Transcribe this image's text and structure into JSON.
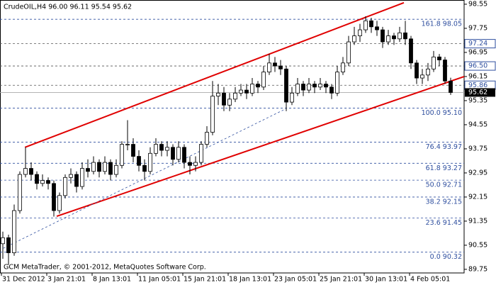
{
  "chart_data": {
    "type": "candlestick",
    "title": "CrudeOIL,H4  96.00 96.11 95.54 95.62",
    "footer": "GCM MetaTrader, © 2001-2012, MetaQuotes Software Corp.",
    "categories": [
      "31 Dec 2012",
      null,
      null,
      null,
      null,
      null,
      null,
      null,
      "3 Jan 21:01",
      null,
      null,
      null,
      null,
      null,
      null,
      null,
      "8 Jan 13:01",
      null,
      null,
      null,
      null,
      null,
      null,
      null,
      "11 Jan 05:01",
      null,
      null,
      null,
      null,
      null,
      null,
      null,
      "15 Jan 21:01",
      null,
      null,
      null,
      null,
      null,
      null,
      null,
      "18 Jan 13:01",
      null,
      null,
      null,
      null,
      null,
      null,
      null,
      "23 Jan 05:01",
      null,
      null,
      null,
      null,
      null,
      null,
      null,
      "25 Jan 21:01",
      null,
      null,
      null,
      null,
      null,
      null,
      null,
      "30 Jan 13:01",
      null,
      null,
      null,
      null,
      null,
      null,
      null,
      "4 Feb 05:01",
      null,
      null,
      null,
      null,
      null,
      null,
      null
    ],
    "open": [
      90.6,
      90.8,
      90.3,
      91.7,
      92.9,
      93.1,
      92.9,
      92.6,
      92.7,
      92.6,
      91.7,
      92.2,
      92.8,
      92.9,
      92.5,
      93.1,
      93.0,
      93.3,
      93.0,
      93.3,
      92.9,
      93.2,
      93.9,
      93.9,
      93.5,
      93.2,
      93.0,
      93.6,
      93.9,
      93.7,
      93.8,
      93.4,
      93.8,
      93.3,
      93.2,
      93.3,
      93.9,
      94.3,
      95.5,
      95.6,
      95.2,
      95.4,
      95.6,
      95.7,
      95.6,
      95.9,
      95.8,
      96.3,
      96.6,
      96.5,
      96.4,
      95.3,
      95.6,
      95.9,
      95.7,
      95.9,
      95.8,
      95.9,
      95.8,
      95.6,
      96.3,
      96.6,
      97.3,
      97.5,
      97.7,
      98.0,
      97.8,
      97.7,
      97.3,
      97.5,
      97.4,
      97.6,
      97.4,
      96.6,
      96.1,
      96.2,
      96.4,
      96.8,
      96.7,
      96.0
    ],
    "high": [
      91.0,
      90.9,
      91.9,
      93.0,
      93.8,
      93.3,
      93.0,
      92.9,
      92.8,
      92.7,
      92.3,
      92.9,
      93.1,
      93.0,
      93.3,
      93.4,
      93.5,
      93.4,
      93.5,
      93.4,
      93.4,
      94.0,
      94.7,
      94.1,
      93.7,
      93.4,
      93.8,
      94.1,
      94.0,
      94.0,
      93.9,
      94.0,
      93.9,
      93.5,
      93.5,
      94.0,
      94.5,
      96.0,
      95.9,
      95.8,
      95.6,
      95.8,
      95.9,
      95.9,
      96.1,
      96.0,
      96.5,
      96.9,
      96.8,
      96.7,
      96.5,
      95.8,
      96.1,
      96.0,
      96.1,
      96.0,
      96.1,
      96.0,
      95.9,
      96.5,
      96.8,
      97.5,
      97.8,
      97.9,
      98.15,
      98.1,
      98.0,
      97.8,
      97.7,
      97.6,
      97.8,
      98.0,
      97.5,
      96.7,
      96.4,
      96.6,
      97.0,
      96.9,
      96.8,
      96.11
    ],
    "low": [
      90.1,
      89.9,
      90.2,
      91.6,
      92.8,
      92.7,
      92.4,
      92.5,
      92.4,
      91.5,
      91.6,
      92.1,
      92.6,
      92.3,
      92.4,
      92.8,
      92.9,
      92.8,
      92.9,
      92.7,
      92.8,
      93.1,
      93.7,
      93.3,
      93.0,
      92.7,
      92.9,
      93.5,
      93.5,
      93.5,
      93.2,
      93.3,
      93.1,
      92.9,
      93.0,
      93.2,
      93.8,
      94.2,
      95.2,
      95.0,
      95.0,
      95.3,
      95.5,
      95.4,
      95.5,
      95.6,
      95.7,
      96.2,
      96.3,
      96.2,
      95.0,
      95.2,
      95.5,
      95.5,
      95.6,
      95.6,
      95.7,
      95.6,
      95.4,
      95.5,
      96.2,
      96.5,
      97.2,
      97.3,
      97.6,
      97.6,
      97.5,
      97.1,
      97.2,
      97.2,
      97.3,
      97.2,
      96.4,
      95.9,
      95.9,
      96.0,
      96.3,
      96.5,
      95.9,
      95.54
    ],
    "close": [
      90.8,
      90.3,
      91.7,
      92.9,
      93.1,
      92.9,
      92.6,
      92.7,
      92.6,
      91.7,
      92.2,
      92.8,
      92.9,
      92.5,
      93.1,
      93.0,
      93.3,
      93.0,
      93.3,
      92.9,
      93.2,
      93.9,
      93.9,
      93.5,
      93.2,
      93.0,
      93.6,
      93.9,
      93.7,
      93.8,
      93.4,
      93.8,
      93.3,
      93.2,
      93.3,
      93.9,
      94.3,
      95.5,
      95.6,
      95.2,
      95.4,
      95.6,
      95.7,
      95.6,
      95.9,
      95.8,
      96.3,
      96.6,
      96.5,
      96.4,
      95.3,
      95.6,
      95.9,
      95.7,
      95.9,
      95.8,
      95.9,
      95.8,
      95.6,
      96.3,
      96.6,
      97.3,
      97.5,
      97.7,
      98.0,
      97.8,
      97.7,
      97.3,
      97.5,
      97.4,
      97.6,
      97.4,
      96.6,
      96.1,
      96.2,
      96.4,
      96.8,
      96.7,
      96.0,
      95.62
    ],
    "ylim": [
      89.63,
      98.69
    ],
    "yticks": [
      89.75,
      90.55,
      91.35,
      92.15,
      92.95,
      93.75,
      94.55,
      95.35,
      96.15,
      96.95,
      97.75,
      98.55
    ],
    "fib_levels": [
      {
        "value": 98.05,
        "label": "161.8 98.05"
      },
      {
        "value": 95.1,
        "label": "100.0 95.10"
      },
      {
        "value": 93.97,
        "label": "76.4 93.97"
      },
      {
        "value": 93.27,
        "label": "61.8 93.27"
      },
      {
        "value": 92.71,
        "label": "50.0 92.71"
      },
      {
        "value": 92.15,
        "label": "38.2 92.15"
      },
      {
        "value": 91.45,
        "label": "23.6 91.45"
      },
      {
        "value": 90.32,
        "label": "0.0 90.32"
      }
    ],
    "fib_color": "#2f4f9f",
    "price_lines": [
      {
        "value": 97.24,
        "label": "97.24"
      },
      {
        "value": 96.5,
        "label": "96.50"
      },
      {
        "value": 95.86,
        "label": "95.86"
      }
    ],
    "last_price": 95.62,
    "trendlines": [
      {
        "x": [
          3.9,
          70.75
        ],
        "y": [
          93.8,
          98.6
        ],
        "color": "#e00000",
        "dashed": false
      },
      {
        "x": [
          9.5,
          81.4
        ],
        "y": [
          91.51,
          96.15
        ],
        "color": "#e00000",
        "dashed": false
      },
      {
        "x": [
          0.1,
          49.5
        ],
        "y": [
          90.45,
          95.04
        ],
        "color": "#2f4f9f",
        "dashed": true
      }
    ],
    "bull_color": "#ffffff",
    "bear_color": "#000000"
  }
}
